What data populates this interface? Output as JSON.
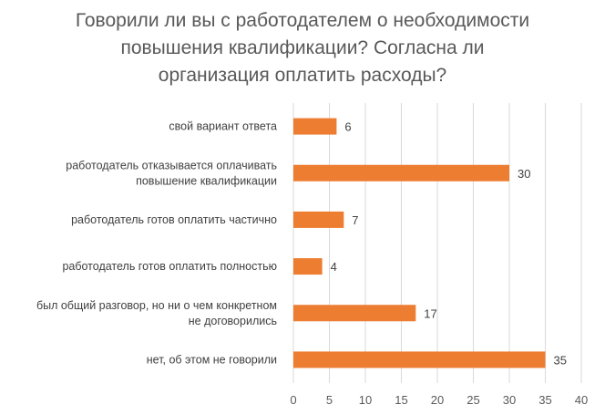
{
  "chart_data": {
    "type": "bar",
    "orientation": "horizontal",
    "title_lines": [
      "Говорили ли вы с работодателем о необходимости",
      "повышения квалификации? Согласна ли",
      "организация оплатить расходы?"
    ],
    "categories": [
      [
        "свой вариант ответа"
      ],
      [
        "работодатель отказывается оплачивать",
        "повышение квалификации"
      ],
      [
        "работодатель готов оплатить частично"
      ],
      [
        "работодатель готов оплатить полностью"
      ],
      [
        "был общий разговор, но ни о чем конкретном",
        "не договорились"
      ],
      [
        "нет, об этом не говорили"
      ]
    ],
    "values": [
      6,
      30,
      7,
      4,
      17,
      35
    ],
    "xlim": [
      0,
      40
    ],
    "ticks": [
      "0",
      "5",
      "10",
      "15",
      "20",
      "25",
      "30",
      "35",
      "40"
    ],
    "bar_color": "#ED7D31",
    "grid_color": "#D9D9D9",
    "grid": true,
    "legend": "none"
  }
}
